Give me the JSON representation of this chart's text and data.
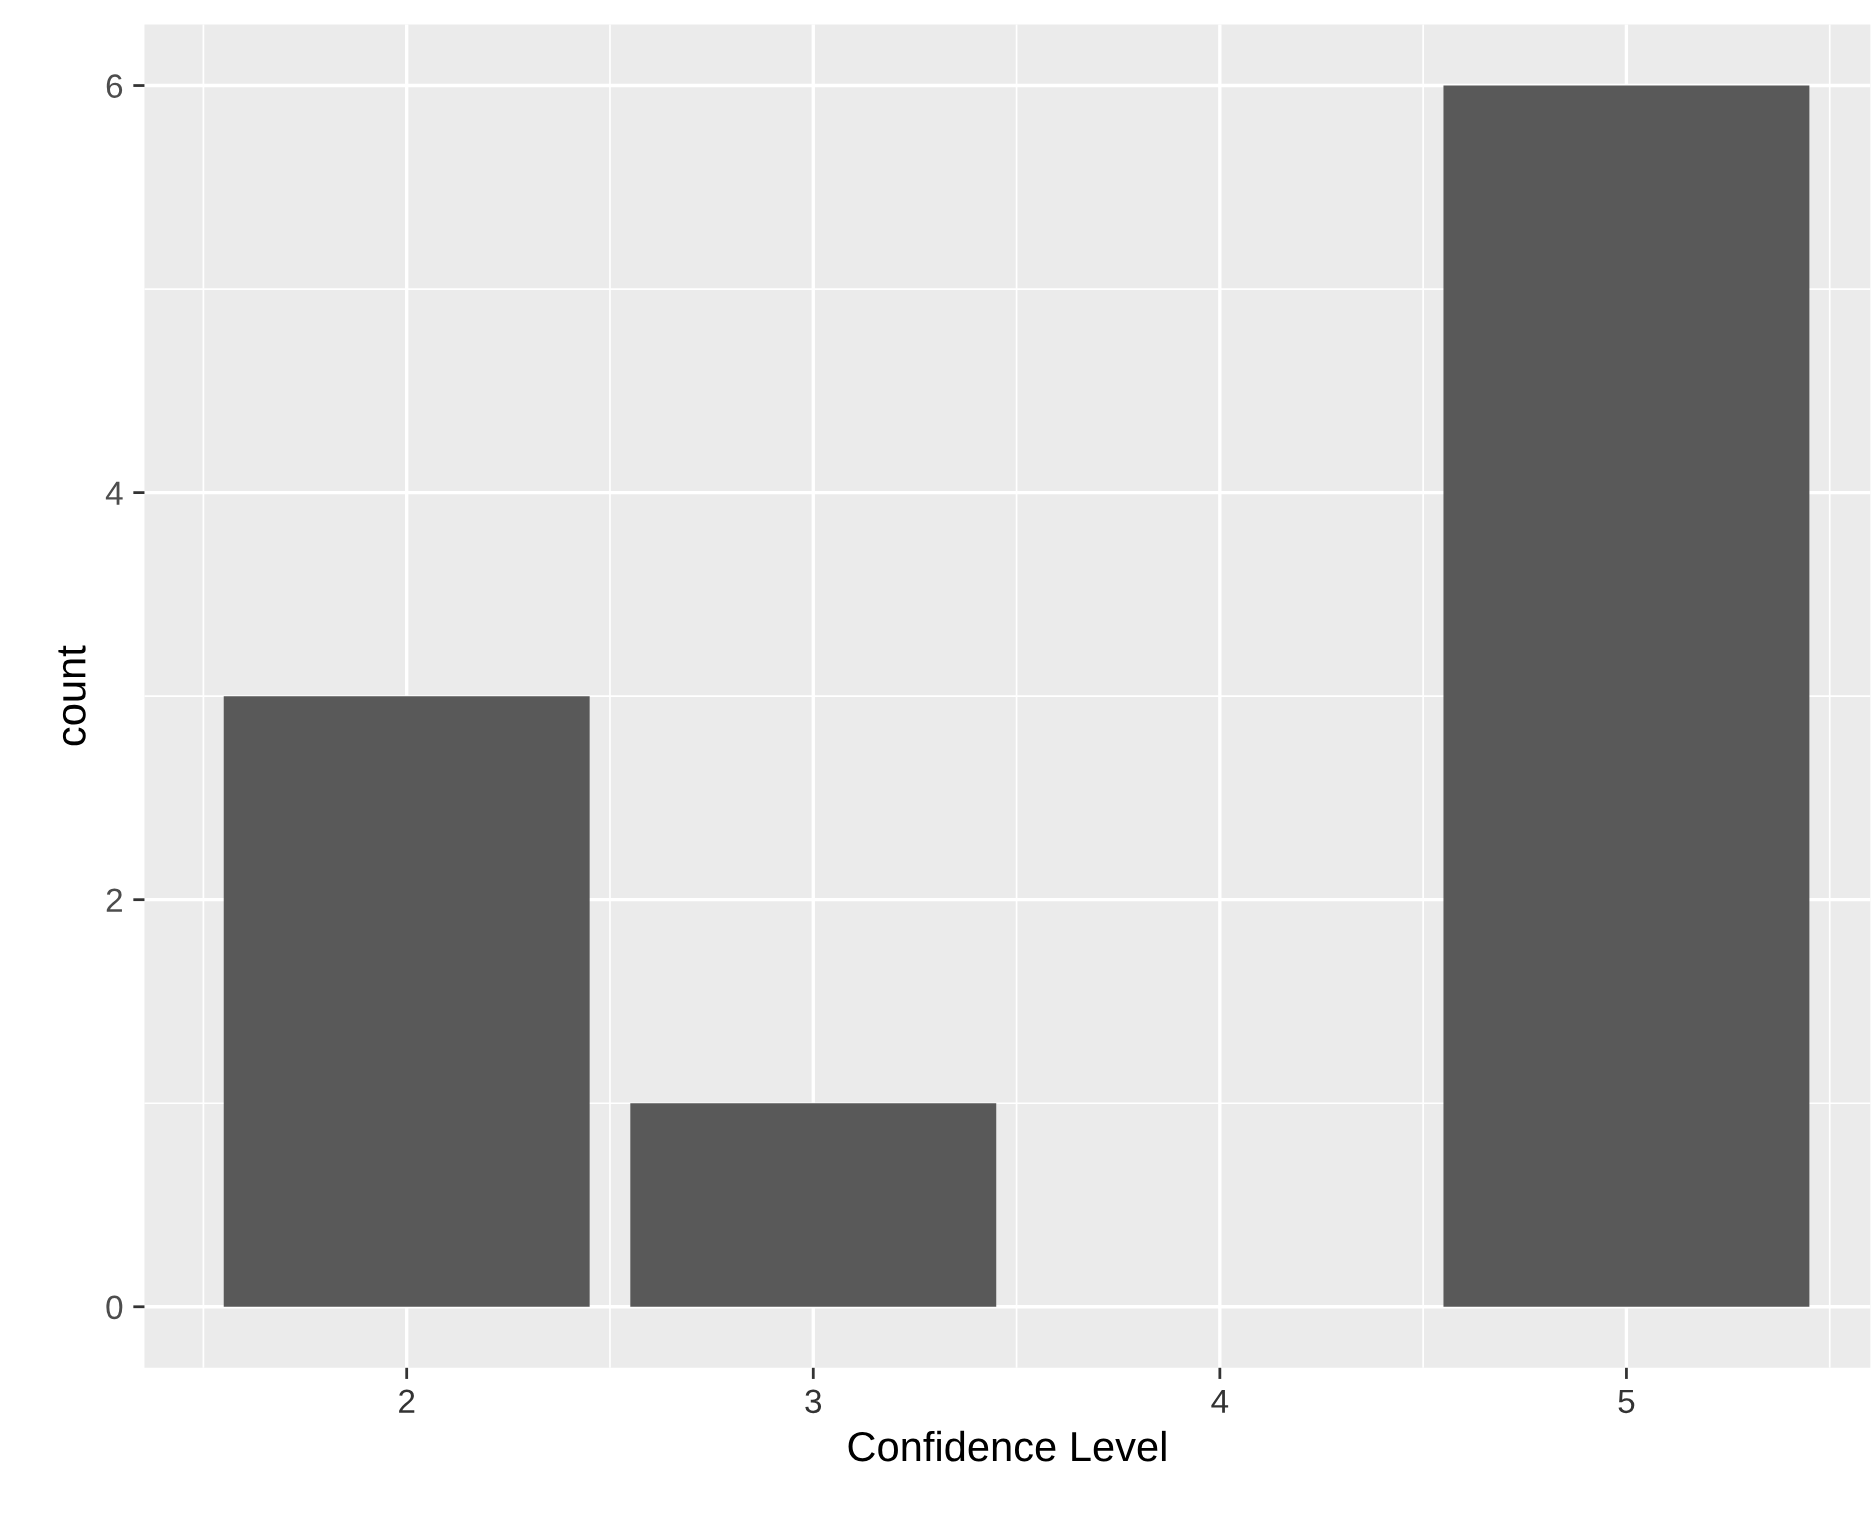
{
  "chart_data": {
    "type": "bar",
    "xlabel": "Confidence Level",
    "ylabel": "count",
    "x": [
      2,
      3,
      5
    ],
    "values": [
      3,
      1,
      6
    ],
    "color": "#595959",
    "xlim": [
      1.355,
      5.6
    ],
    "ylim": [
      -0.3,
      6.3
    ],
    "xticks": [
      2,
      3,
      4,
      5
    ],
    "yticks": [
      0,
      2,
      4,
      6
    ],
    "grid": true
  }
}
